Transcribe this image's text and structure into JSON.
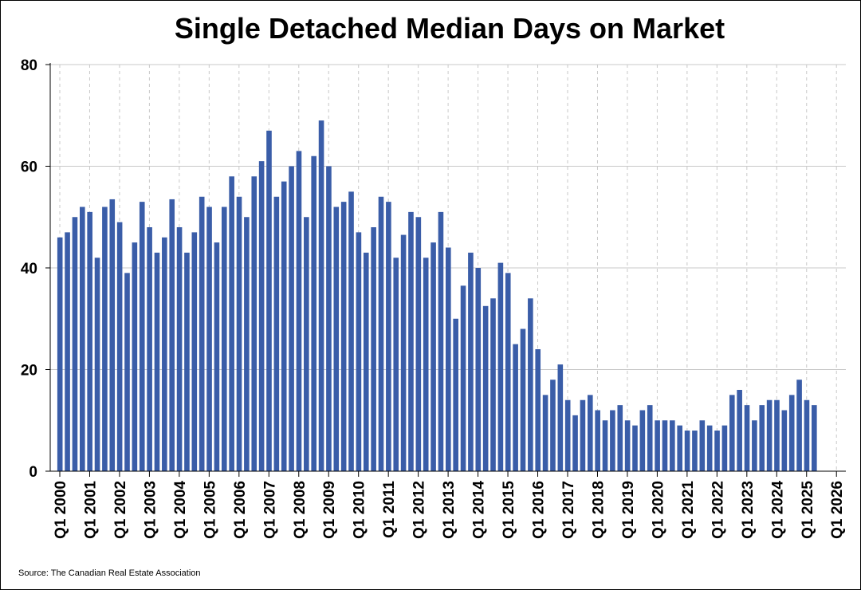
{
  "chart_data": {
    "type": "bar",
    "title": "Single Detached Median Days on Market",
    "source": "Source: The Canadian Real Estate Association",
    "xlabel": "",
    "ylabel": "",
    "ylim": [
      0,
      80
    ],
    "yticks": [
      0,
      20,
      40,
      60,
      80
    ],
    "xlim": [
      2000,
      2026
    ],
    "xticks": [
      "Q1 2000",
      "Q1 2001",
      "Q1 2002",
      "Q1 2003",
      "Q1 2004",
      "Q1 2005",
      "Q1 2006",
      "Q1 2007",
      "Q1 2008",
      "Q1 2009",
      "Q1 2010",
      "Q1 2011",
      "Q1 2012",
      "Q1 2013",
      "Q1 2014",
      "Q1 2015",
      "Q1 2016",
      "Q1 2017",
      "Q1 2018",
      "Q1 2019",
      "Q1 2020",
      "Q1 2021",
      "Q1 2022",
      "Q1 2023",
      "Q1 2024",
      "Q1 2025",
      "Q1 2026"
    ],
    "grid": {
      "horizontal": true,
      "vertical": true
    },
    "bar_color": "#3A5DA8",
    "first_period": "Q1 2000",
    "values": [
      46,
      47,
      50,
      52,
      51,
      42,
      52,
      53.5,
      49,
      39,
      45,
      53,
      48,
      43,
      46,
      53.5,
      48,
      43,
      47,
      54,
      52,
      45,
      52,
      58,
      54,
      50,
      58,
      61,
      67,
      54,
      57,
      60,
      63,
      50,
      62,
      69,
      60,
      52,
      53,
      55,
      47,
      43,
      48,
      54,
      53,
      42,
      46.5,
      51,
      50,
      42,
      45,
      51,
      44,
      30,
      36.5,
      43,
      40,
      32.5,
      34,
      41,
      39,
      25,
      28,
      34,
      24,
      15,
      18,
      21,
      14,
      11,
      14,
      15,
      12,
      10,
      12,
      13,
      10,
      9,
      12,
      13,
      10,
      10,
      10,
      9,
      8,
      8,
      10,
      9,
      8,
      9,
      15,
      16,
      13,
      10,
      13,
      14,
      14,
      12,
      15,
      18,
      14,
      13
    ]
  }
}
